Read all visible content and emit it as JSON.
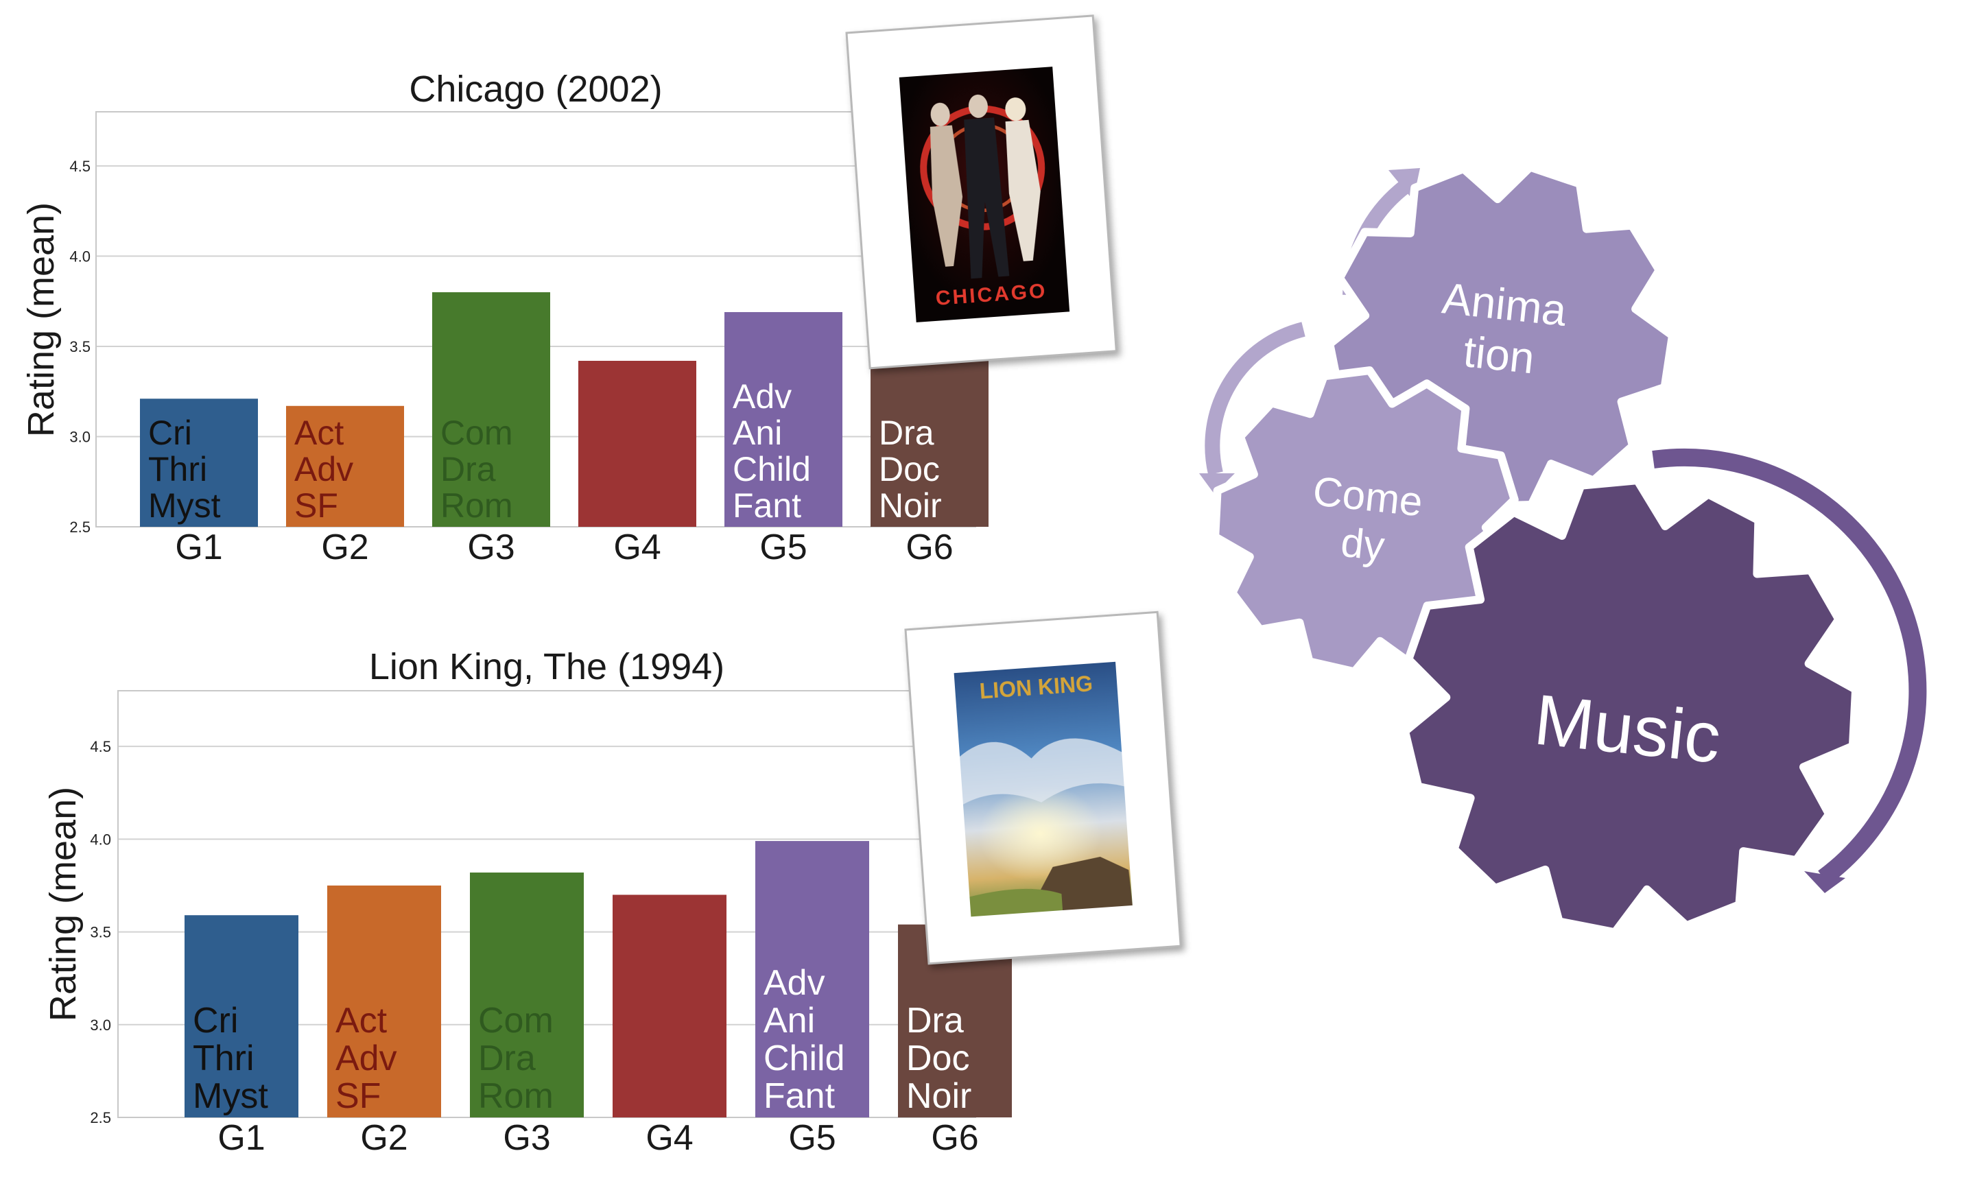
{
  "chart_data": [
    {
      "type": "bar",
      "title": "Chicago (2002)",
      "ylabel": "Rating (mean)",
      "xlabel": "",
      "categories": [
        "G1",
        "G2",
        "G3",
        "G4",
        "G5",
        "G6"
      ],
      "values": [
        3.21,
        3.17,
        3.8,
        3.42,
        3.69,
        3.65
      ],
      "ylim": [
        2.5,
        4.8
      ],
      "yticks": [
        "2.5",
        "3.0",
        "3.5",
        "4.0",
        "4.5"
      ],
      "grid": true,
      "bar_colors": [
        "#2f5e8e",
        "#c8692a",
        "#477a2c",
        "#9c3434",
        "#7b64a4",
        "#6b473f"
      ],
      "bar_labels": [
        {
          "lines": [
            "Cri",
            "Thri",
            "Myst"
          ],
          "color": "#111111"
        },
        {
          "lines": [
            "Act",
            "Adv",
            "SF"
          ],
          "color": "#7a1a10"
        },
        {
          "lines": [
            "Com",
            "Dra",
            "Rom"
          ],
          "color": "#2f5a1f"
        },
        {
          "lines": [],
          "color": "#ffffff"
        },
        {
          "lines": [
            "Adv",
            "Ani",
            "Child",
            "Fant"
          ],
          "color": "#ffffff"
        },
        {
          "lines": [
            "Dra",
            "Doc",
            "Noir"
          ],
          "color": "#ffffff"
        }
      ]
    },
    {
      "type": "bar",
      "title": "Lion King, The (1994)",
      "ylabel": "Rating (mean)",
      "xlabel": "",
      "categories": [
        "G1",
        "G2",
        "G3",
        "G4",
        "G5",
        "G6"
      ],
      "values": [
        3.59,
        3.75,
        3.82,
        3.7,
        3.99,
        3.54
      ],
      "ylim": [
        2.5,
        4.8
      ],
      "yticks": [
        "2.5",
        "3.0",
        "3.5",
        "4.0",
        "4.5"
      ],
      "grid": true,
      "bar_colors": [
        "#2f5e8e",
        "#c8692a",
        "#477a2c",
        "#9c3434",
        "#7b64a4",
        "#6b473f"
      ],
      "bar_labels": [
        {
          "lines": [
            "Cri",
            "Thri",
            "Myst"
          ],
          "color": "#111111"
        },
        {
          "lines": [
            "Act",
            "Adv",
            "SF"
          ],
          "color": "#7a1a10"
        },
        {
          "lines": [
            "Com",
            "Dra",
            "Rom"
          ],
          "color": "#2f5a1f"
        },
        {
          "lines": [],
          "color": "#ffffff"
        },
        {
          "lines": [
            "Adv",
            "Ani",
            "Child",
            "Fant"
          ],
          "color": "#ffffff"
        },
        {
          "lines": [
            "Dra",
            "Doc",
            "Noir"
          ],
          "color": "#ffffff"
        }
      ]
    }
  ],
  "posters": {
    "chicago": {
      "text": "CHICAGO",
      "text_color": "#e23a2e"
    },
    "lion_king": {
      "text": "LION KING",
      "text_color": "#d4a53a"
    }
  },
  "gears": {
    "animation": {
      "lines": [
        "Anima",
        "tion"
      ],
      "color": "#9b8dbb"
    },
    "comedy": {
      "lines": [
        "Come",
        "dy"
      ],
      "color": "#a79ac4"
    },
    "music": {
      "lines": [
        "Music"
      ],
      "color": "#5d4775"
    }
  }
}
